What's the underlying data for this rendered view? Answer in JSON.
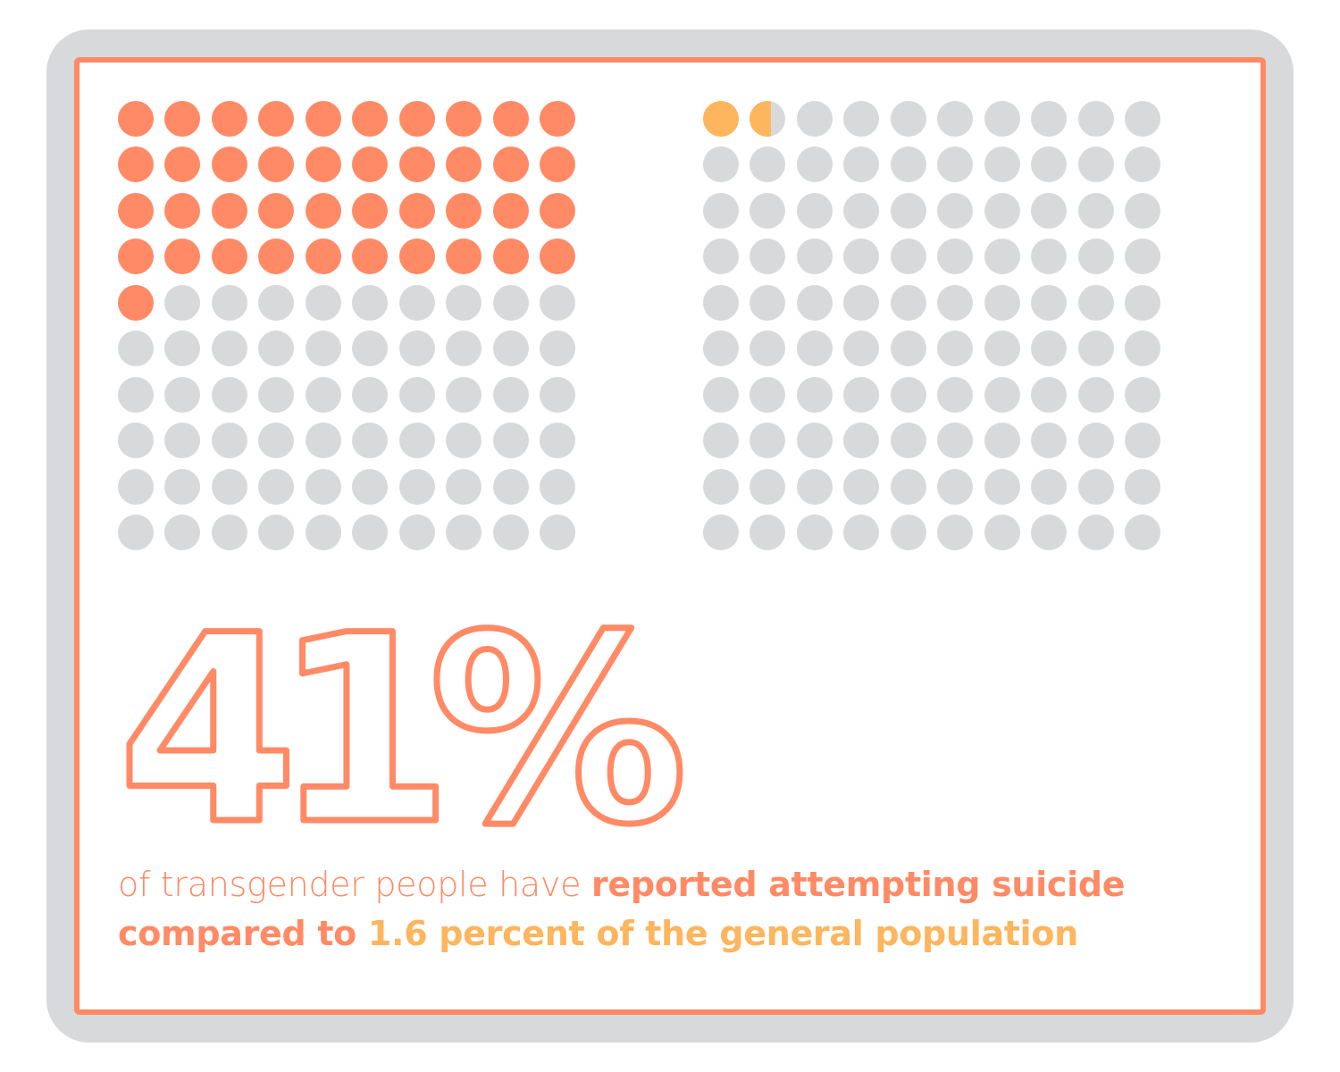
{
  "stat": {
    "value": "41%",
    "caption_light": "of transgender people have ",
    "caption_bold_1": "reported attempting suicide",
    "caption_bold_2": "compared to ",
    "caption_accent": "1.6 percent of the general population"
  },
  "colors": {
    "primary": "#ff8a65",
    "accent": "#fdb55e",
    "empty": "#d8d9da",
    "frame": "#d8d9da"
  },
  "chart_data": [
    {
      "type": "waffle",
      "group": "transgender people",
      "value": 41,
      "total": 100,
      "filled_color": "#ff8a65"
    },
    {
      "type": "waffle",
      "group": "general population",
      "value": 1.6,
      "total": 100,
      "filled_color": "#fdb55e"
    }
  ]
}
